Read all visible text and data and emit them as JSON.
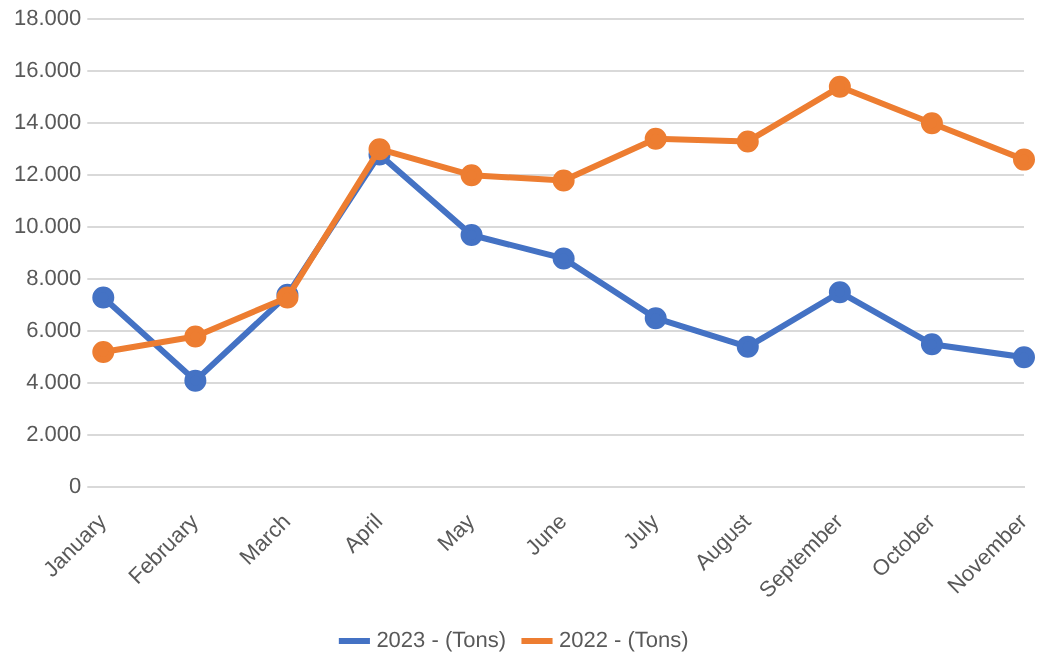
{
  "chart_data": {
    "type": "line",
    "categories": [
      "January",
      "February",
      "March",
      "April",
      "May",
      "June",
      "July",
      "August",
      "September",
      "October",
      "November"
    ],
    "series": [
      {
        "name": "2023 - (Tons)",
        "color": "#4472c4",
        "values": [
          7300,
          4100,
          7400,
          12800,
          9700,
          8800,
          6500,
          5400,
          7500,
          5500,
          5000
        ]
      },
      {
        "name": "2022 - (Tons)",
        "color": "#ed7d31",
        "values": [
          5200,
          5800,
          7300,
          13000,
          12000,
          11800,
          13400,
          13300,
          15400,
          14000,
          12600
        ]
      }
    ],
    "ylim": [
      0,
      18000
    ],
    "yticks": [
      {
        "value": 0,
        "label": "0"
      },
      {
        "value": 2000,
        "label": "2.000"
      },
      {
        "value": 4000,
        "label": "4.000"
      },
      {
        "value": 6000,
        "label": "6.000"
      },
      {
        "value": 8000,
        "label": "8.000"
      },
      {
        "value": 10000,
        "label": "10.000"
      },
      {
        "value": 12000,
        "label": "12.000"
      },
      {
        "value": 14000,
        "label": "14.000"
      },
      {
        "value": 16000,
        "label": "16.000"
      },
      {
        "value": 18000,
        "label": "18.000"
      }
    ],
    "grid": "y",
    "legend": "bottom",
    "marker": "circle",
    "line_style": "solid"
  }
}
